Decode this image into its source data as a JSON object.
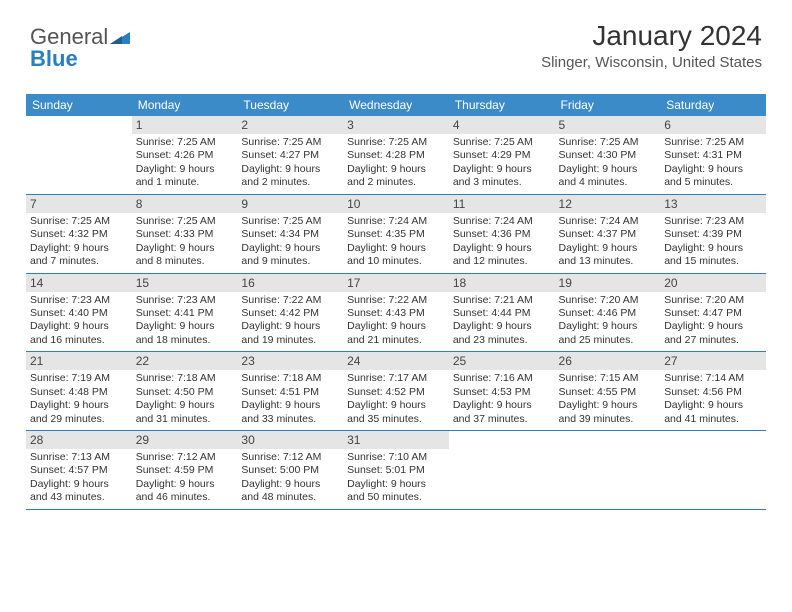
{
  "logo": {
    "part1": "General",
    "part2": "Blue"
  },
  "title": "January 2024",
  "subtitle": "Slinger, Wisconsin, United States",
  "colors": {
    "accent": "#3b8bc8",
    "border": "#2a7fbf",
    "dayband": "#e5e5e5",
    "text": "#333333",
    "bg": "#ffffff"
  },
  "dayHeaders": [
    "Sunday",
    "Monday",
    "Tuesday",
    "Wednesday",
    "Thursday",
    "Friday",
    "Saturday"
  ],
  "weeks": [
    [
      {
        "n": "",
        "sr": "",
        "ss": "",
        "dl1": "",
        "dl2": ""
      },
      {
        "n": "1",
        "sr": "Sunrise: 7:25 AM",
        "ss": "Sunset: 4:26 PM",
        "dl1": "Daylight: 9 hours",
        "dl2": "and 1 minute."
      },
      {
        "n": "2",
        "sr": "Sunrise: 7:25 AM",
        "ss": "Sunset: 4:27 PM",
        "dl1": "Daylight: 9 hours",
        "dl2": "and 2 minutes."
      },
      {
        "n": "3",
        "sr": "Sunrise: 7:25 AM",
        "ss": "Sunset: 4:28 PM",
        "dl1": "Daylight: 9 hours",
        "dl2": "and 2 minutes."
      },
      {
        "n": "4",
        "sr": "Sunrise: 7:25 AM",
        "ss": "Sunset: 4:29 PM",
        "dl1": "Daylight: 9 hours",
        "dl2": "and 3 minutes."
      },
      {
        "n": "5",
        "sr": "Sunrise: 7:25 AM",
        "ss": "Sunset: 4:30 PM",
        "dl1": "Daylight: 9 hours",
        "dl2": "and 4 minutes."
      },
      {
        "n": "6",
        "sr": "Sunrise: 7:25 AM",
        "ss": "Sunset: 4:31 PM",
        "dl1": "Daylight: 9 hours",
        "dl2": "and 5 minutes."
      }
    ],
    [
      {
        "n": "7",
        "sr": "Sunrise: 7:25 AM",
        "ss": "Sunset: 4:32 PM",
        "dl1": "Daylight: 9 hours",
        "dl2": "and 7 minutes."
      },
      {
        "n": "8",
        "sr": "Sunrise: 7:25 AM",
        "ss": "Sunset: 4:33 PM",
        "dl1": "Daylight: 9 hours",
        "dl2": "and 8 minutes."
      },
      {
        "n": "9",
        "sr": "Sunrise: 7:25 AM",
        "ss": "Sunset: 4:34 PM",
        "dl1": "Daylight: 9 hours",
        "dl2": "and 9 minutes."
      },
      {
        "n": "10",
        "sr": "Sunrise: 7:24 AM",
        "ss": "Sunset: 4:35 PM",
        "dl1": "Daylight: 9 hours",
        "dl2": "and 10 minutes."
      },
      {
        "n": "11",
        "sr": "Sunrise: 7:24 AM",
        "ss": "Sunset: 4:36 PM",
        "dl1": "Daylight: 9 hours",
        "dl2": "and 12 minutes."
      },
      {
        "n": "12",
        "sr": "Sunrise: 7:24 AM",
        "ss": "Sunset: 4:37 PM",
        "dl1": "Daylight: 9 hours",
        "dl2": "and 13 minutes."
      },
      {
        "n": "13",
        "sr": "Sunrise: 7:23 AM",
        "ss": "Sunset: 4:39 PM",
        "dl1": "Daylight: 9 hours",
        "dl2": "and 15 minutes."
      }
    ],
    [
      {
        "n": "14",
        "sr": "Sunrise: 7:23 AM",
        "ss": "Sunset: 4:40 PM",
        "dl1": "Daylight: 9 hours",
        "dl2": "and 16 minutes."
      },
      {
        "n": "15",
        "sr": "Sunrise: 7:23 AM",
        "ss": "Sunset: 4:41 PM",
        "dl1": "Daylight: 9 hours",
        "dl2": "and 18 minutes."
      },
      {
        "n": "16",
        "sr": "Sunrise: 7:22 AM",
        "ss": "Sunset: 4:42 PM",
        "dl1": "Daylight: 9 hours",
        "dl2": "and 19 minutes."
      },
      {
        "n": "17",
        "sr": "Sunrise: 7:22 AM",
        "ss": "Sunset: 4:43 PM",
        "dl1": "Daylight: 9 hours",
        "dl2": "and 21 minutes."
      },
      {
        "n": "18",
        "sr": "Sunrise: 7:21 AM",
        "ss": "Sunset: 4:44 PM",
        "dl1": "Daylight: 9 hours",
        "dl2": "and 23 minutes."
      },
      {
        "n": "19",
        "sr": "Sunrise: 7:20 AM",
        "ss": "Sunset: 4:46 PM",
        "dl1": "Daylight: 9 hours",
        "dl2": "and 25 minutes."
      },
      {
        "n": "20",
        "sr": "Sunrise: 7:20 AM",
        "ss": "Sunset: 4:47 PM",
        "dl1": "Daylight: 9 hours",
        "dl2": "and 27 minutes."
      }
    ],
    [
      {
        "n": "21",
        "sr": "Sunrise: 7:19 AM",
        "ss": "Sunset: 4:48 PM",
        "dl1": "Daylight: 9 hours",
        "dl2": "and 29 minutes."
      },
      {
        "n": "22",
        "sr": "Sunrise: 7:18 AM",
        "ss": "Sunset: 4:50 PM",
        "dl1": "Daylight: 9 hours",
        "dl2": "and 31 minutes."
      },
      {
        "n": "23",
        "sr": "Sunrise: 7:18 AM",
        "ss": "Sunset: 4:51 PM",
        "dl1": "Daylight: 9 hours",
        "dl2": "and 33 minutes."
      },
      {
        "n": "24",
        "sr": "Sunrise: 7:17 AM",
        "ss": "Sunset: 4:52 PM",
        "dl1": "Daylight: 9 hours",
        "dl2": "and 35 minutes."
      },
      {
        "n": "25",
        "sr": "Sunrise: 7:16 AM",
        "ss": "Sunset: 4:53 PM",
        "dl1": "Daylight: 9 hours",
        "dl2": "and 37 minutes."
      },
      {
        "n": "26",
        "sr": "Sunrise: 7:15 AM",
        "ss": "Sunset: 4:55 PM",
        "dl1": "Daylight: 9 hours",
        "dl2": "and 39 minutes."
      },
      {
        "n": "27",
        "sr": "Sunrise: 7:14 AM",
        "ss": "Sunset: 4:56 PM",
        "dl1": "Daylight: 9 hours",
        "dl2": "and 41 minutes."
      }
    ],
    [
      {
        "n": "28",
        "sr": "Sunrise: 7:13 AM",
        "ss": "Sunset: 4:57 PM",
        "dl1": "Daylight: 9 hours",
        "dl2": "and 43 minutes."
      },
      {
        "n": "29",
        "sr": "Sunrise: 7:12 AM",
        "ss": "Sunset: 4:59 PM",
        "dl1": "Daylight: 9 hours",
        "dl2": "and 46 minutes."
      },
      {
        "n": "30",
        "sr": "Sunrise: 7:12 AM",
        "ss": "Sunset: 5:00 PM",
        "dl1": "Daylight: 9 hours",
        "dl2": "and 48 minutes."
      },
      {
        "n": "31",
        "sr": "Sunrise: 7:10 AM",
        "ss": "Sunset: 5:01 PM",
        "dl1": "Daylight: 9 hours",
        "dl2": "and 50 minutes."
      },
      {
        "n": "",
        "sr": "",
        "ss": "",
        "dl1": "",
        "dl2": ""
      },
      {
        "n": "",
        "sr": "",
        "ss": "",
        "dl1": "",
        "dl2": ""
      },
      {
        "n": "",
        "sr": "",
        "ss": "",
        "dl1": "",
        "dl2": ""
      }
    ]
  ]
}
